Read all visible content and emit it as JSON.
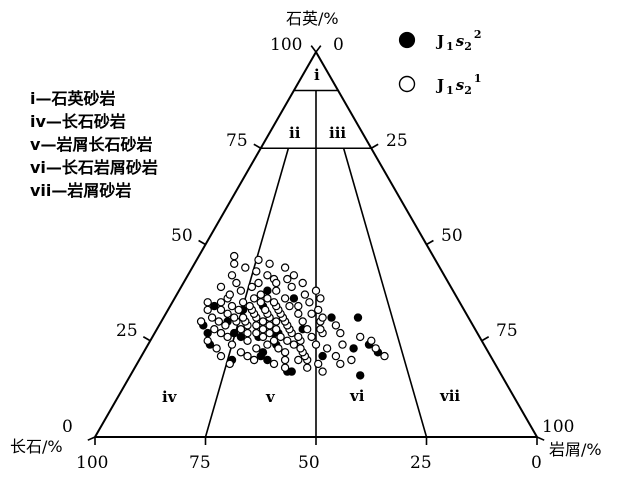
{
  "chart_data": {
    "type": "ternary-scatter",
    "axes": {
      "top": {
        "label": "石英/%",
        "tick_max": "100",
        "tick_min": "0"
      },
      "left": {
        "label": "长石/%",
        "ticks": [
          "0",
          "25",
          "50",
          "75"
        ],
        "bottom_tick": "100"
      },
      "right": {
        "label": "岩屑/%",
        "ticks": [
          "25",
          "50",
          "75"
        ],
        "corner_tick": "100"
      },
      "bottom_ticks": [
        "100",
        "75",
        "50",
        "25",
        "0"
      ]
    },
    "regions": [
      "i",
      "ii",
      "iii",
      "iv",
      "v",
      "vi",
      "vii"
    ],
    "descriptions": [
      {
        "code": "i",
        "text": "石英砂岩"
      },
      {
        "code": "iv",
        "text": "长石砂岩"
      },
      {
        "code": "v",
        "text": "岩屑长石砂岩"
      },
      {
        "code": "vi",
        "text": "长石岩屑砂岩"
      },
      {
        "code": "vii",
        "text": "岩屑砂岩"
      }
    ],
    "separator": "—",
    "legend": [
      {
        "base": "J",
        "sub1": "1",
        "s": "s",
        "sub2": "2",
        "sup": "2",
        "marker": "filled-circle"
      },
      {
        "base": "J",
        "sub1": "1",
        "s": "s",
        "sub2": "2",
        "sup": "1",
        "marker": "open-circle"
      }
    ],
    "series": [
      {
        "marker": "filled-circle",
        "points": [
          [
            16,
            52
          ],
          [
            22,
            53
          ],
          [
            24,
            50
          ],
          [
            31,
            44
          ],
          [
            21,
            41
          ],
          [
            23,
            47
          ],
          [
            31,
            38
          ],
          [
            17,
            36
          ],
          [
            28,
            33
          ],
          [
            27,
            28
          ],
          [
            22,
            27
          ],
          [
            26,
            24
          ],
          [
            20,
            21
          ],
          [
            34,
            21
          ],
          [
            27,
            18
          ],
          [
            30,
            15
          ],
          [
            24,
            14
          ],
          [
            27,
            12
          ],
          [
            29,
            10
          ],
          [
            34,
            10
          ],
          [
            20,
            29
          ],
          [
            21,
            27
          ],
          [
            36,
            27
          ],
          [
            38,
            20
          ],
          [
            33,
            17
          ],
          [
            26,
            20
          ],
          [
            17,
            35
          ],
          [
            24,
            29
          ],
          [
            27,
            27
          ]
        ]
      },
      {
        "marker": "open-circle",
        "points": [
          [
            18,
            39
          ],
          [
            20,
            38
          ],
          [
            21,
            37
          ],
          [
            20,
            36
          ],
          [
            22,
            36
          ],
          [
            23,
            35
          ],
          [
            25,
            34
          ],
          [
            24,
            33
          ],
          [
            26,
            33
          ],
          [
            22,
            32
          ],
          [
            25,
            31
          ],
          [
            27,
            31
          ],
          [
            28,
            30
          ],
          [
            23,
            30
          ],
          [
            26,
            29
          ],
          [
            29,
            29
          ],
          [
            30,
            28
          ],
          [
            25,
            28
          ],
          [
            28,
            27
          ],
          [
            31,
            27
          ],
          [
            24,
            27
          ],
          [
            27,
            26
          ],
          [
            30,
            26
          ],
          [
            32,
            26
          ],
          [
            33,
            25
          ],
          [
            26,
            25
          ],
          [
            29,
            25
          ],
          [
            31,
            24
          ],
          [
            34,
            24
          ],
          [
            28,
            24
          ],
          [
            30,
            23
          ],
          [
            32,
            23
          ],
          [
            35,
            23
          ],
          [
            27,
            23
          ],
          [
            33,
            22
          ],
          [
            29,
            22
          ],
          [
            36,
            21
          ],
          [
            31,
            21
          ],
          [
            27,
            21
          ],
          [
            32,
            20
          ],
          [
            29,
            20
          ],
          [
            35,
            20
          ],
          [
            30,
            19
          ],
          [
            33,
            19
          ],
          [
            37,
            19
          ],
          [
            28,
            19
          ],
          [
            34,
            18
          ],
          [
            31,
            18
          ],
          [
            36,
            18
          ],
          [
            30,
            17
          ],
          [
            33,
            16
          ],
          [
            35,
            16
          ],
          [
            31,
            16
          ],
          [
            29,
            15
          ],
          [
            32,
            14
          ],
          [
            34,
            14
          ],
          [
            28,
            13
          ],
          [
            30,
            13
          ],
          [
            33,
            12
          ],
          [
            31,
            11
          ],
          [
            35,
            11
          ],
          [
            36,
            12
          ],
          [
            38,
            14
          ],
          [
            39,
            16
          ],
          [
            40,
            17
          ],
          [
            42,
            18
          ],
          [
            41,
            20
          ],
          [
            26,
            17
          ],
          [
            24,
            19
          ],
          [
            22,
            22
          ],
          [
            21,
            24
          ],
          [
            20,
            26
          ],
          [
            19,
            31
          ],
          [
            20,
            33
          ],
          [
            18,
            34
          ],
          [
            24,
            38
          ],
          [
            27,
            38
          ],
          [
            30,
            36
          ],
          [
            32,
            33
          ],
          [
            35,
            31
          ],
          [
            37,
            29
          ],
          [
            39,
            25
          ],
          [
            41,
            23
          ],
          [
            40,
            21
          ],
          [
            43,
            15
          ],
          [
            45,
            17
          ],
          [
            44,
            21
          ],
          [
            42,
            24
          ],
          [
            38,
            22
          ],
          [
            36,
            25
          ],
          [
            34,
            27
          ],
          [
            23,
            41
          ],
          [
            21,
            44
          ],
          [
            20,
            48
          ],
          [
            23,
            52
          ],
          [
            25,
            50
          ],
          [
            26,
            47
          ],
          [
            24,
            44
          ],
          [
            27,
            42
          ],
          [
            29,
            40
          ],
          [
            31,
            36
          ],
          [
            33,
            34
          ],
          [
            36,
            33
          ],
          [
            38,
            31
          ],
          [
            40,
            27
          ],
          [
            37,
            12
          ],
          [
            40,
            12
          ],
          [
            42,
            10
          ],
          [
            39,
            9
          ],
          [
            35,
            8
          ],
          [
            33,
            9
          ],
          [
            30,
            9
          ],
          [
            45,
            9
          ],
          [
            44,
            12
          ],
          [
            46,
            14
          ],
          [
            47,
            8
          ],
          [
            19,
            41
          ],
          [
            17,
            43
          ],
          [
            19,
            46
          ],
          [
            21,
            55
          ],
          [
            28,
            34
          ],
          [
            30,
            32
          ],
          [
            32,
            30
          ],
          [
            34,
            29
          ],
          [
            26,
            36
          ],
          [
            23,
            25
          ],
          [
            25,
            22
          ],
          [
            27,
            15
          ],
          [
            25,
            13
          ],
          [
            23,
            16
          ],
          [
            21,
            18
          ],
          [
            19,
            21
          ],
          [
            28,
            37
          ]
        ]
      }
    ]
  }
}
